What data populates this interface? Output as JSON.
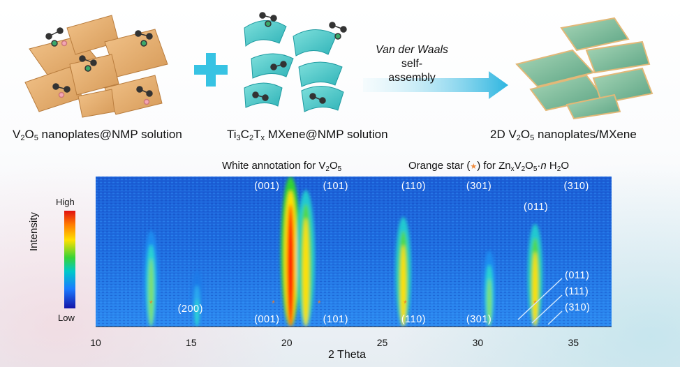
{
  "top_captions": {
    "left": {
      "pre": "V",
      "s1": "2",
      "mid": "O",
      "s2": "5",
      "post": " nanoplates@NMP solution"
    },
    "middle": {
      "a": "Ti",
      "s1": "3",
      "b": "C",
      "s2": "2",
      "c": "T",
      "s3": "x",
      "d": " MXene@NMP solution"
    },
    "right": {
      "pre": "2D V",
      "s1": "2",
      "mid": "O",
      "s2": "5",
      "post": " nanoplates/MXene"
    },
    "arrow_line1_italic": "Van der Waals",
    "arrow_line1_rest": " self-",
    "arrow_line2": "assembly"
  },
  "annotations": {
    "white": {
      "pre": "White annotation for V",
      "s1": "2",
      "mid": "O",
      "s2": "5"
    },
    "orange": {
      "pre": "Orange star (",
      "star": "★",
      "post": ")  for Zn",
      "sx": "x",
      "v": "V",
      "s2": "2",
      "o": "O",
      "s5": "5",
      "dot": "·",
      "n": "n",
      "h": " H",
      "s2b": "2",
      "o2": "O"
    }
  },
  "chart_data": {
    "type": "heatmap",
    "xlabel": "2 Theta",
    "ylabel": "Intensity",
    "xlim": [
      10,
      37
    ],
    "x_ticks": [
      "10",
      "15",
      "20",
      "25",
      "30",
      "35"
    ],
    "colorbar": {
      "high": "High",
      "low": "Low"
    },
    "top_peak_labels": [
      {
        "label": "(001)",
        "x": 19.1
      },
      {
        "label": "(101)",
        "x": 22.7
      },
      {
        "label": "(110)",
        "x": 26.8
      },
      {
        "label": "(301)",
        "x": 30.2
      },
      {
        "label": "(011)",
        "x": 33.2
      },
      {
        "label": "(310)",
        "x": 35.3
      }
    ],
    "bottom_peak_labels": [
      {
        "label": "(200)",
        "x": 15.1
      },
      {
        "label": "(001)",
        "x": 19.1
      },
      {
        "label": "(101)",
        "x": 22.7
      },
      {
        "label": "(110)",
        "x": 26.8
      },
      {
        "label": "(301)",
        "x": 30.2
      }
    ],
    "right_peak_labels": [
      "(011)",
      "(111)",
      "(310)"
    ],
    "orange_star_positions": [
      12.9,
      19.3,
      21.7,
      26.2,
      33.0
    ],
    "peaks": [
      {
        "x": 12.9,
        "intensity": 0.6
      },
      {
        "x": 20.2,
        "intensity": 1.0
      },
      {
        "x": 21.0,
        "intensity": 0.9
      },
      {
        "x": 26.1,
        "intensity": 0.7
      },
      {
        "x": 33.0,
        "intensity": 0.65
      },
      {
        "x": 30.6,
        "intensity": 0.45
      },
      {
        "x": 15.3,
        "intensity": 0.3
      }
    ]
  }
}
